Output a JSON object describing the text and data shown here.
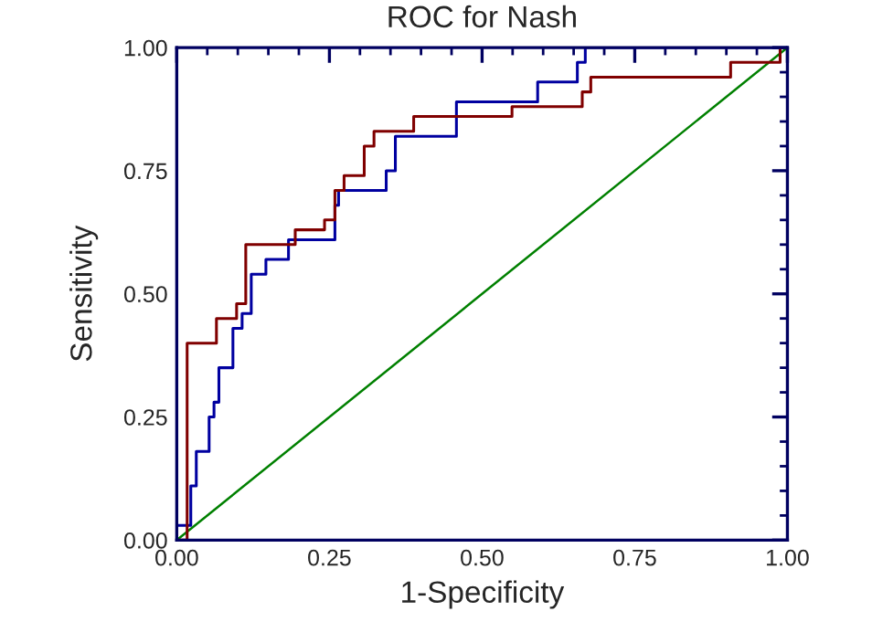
{
  "chart_data": {
    "type": "step",
    "title": "ROC for Nash",
    "xlabel": "1-Specificity",
    "ylabel": "Sensitivity",
    "xlim": [
      0,
      1
    ],
    "ylim": [
      0,
      1
    ],
    "xticks": [
      {
        "value": 0,
        "label": "0.00"
      },
      {
        "value": 0.25,
        "label": "0.25"
      },
      {
        "value": 0.5,
        "label": "0.50"
      },
      {
        "value": 0.75,
        "label": "0.75"
      },
      {
        "value": 1,
        "label": "1.00"
      }
    ],
    "yticks": [
      {
        "value": 0,
        "label": "0.00"
      },
      {
        "value": 0.25,
        "label": "0.25"
      },
      {
        "value": 0.5,
        "label": "0.50"
      },
      {
        "value": 0.75,
        "label": "0.75"
      },
      {
        "value": 1,
        "label": "1.00"
      }
    ],
    "grid": false,
    "legend": false,
    "series": [
      {
        "type": "line",
        "color": "#008000",
        "x": [
          0,
          1
        ],
        "values": [
          0,
          1
        ]
      },
      {
        "color": "#0000a0",
        "x": [
          0,
          0.023,
          0.032,
          0.053,
          0.061,
          0.069,
          0.092,
          0.107,
          0.122,
          0.146,
          0.183,
          0.259,
          0.265,
          0.343,
          0.358,
          0.458,
          0.591,
          0.656,
          0.669,
          1.0
        ],
        "values": [
          0.03,
          0.11,
          0.18,
          0.25,
          0.28,
          0.35,
          0.43,
          0.46,
          0.54,
          0.57,
          0.61,
          0.68,
          0.71,
          0.75,
          0.82,
          0.89,
          0.93,
          0.97,
          1.0,
          1.0
        ]
      },
      {
        "color": "#800000",
        "x": [
          0,
          0.017,
          0.065,
          0.098,
          0.113,
          0.194,
          0.242,
          0.259,
          0.274,
          0.307,
          0.323,
          0.388,
          0.549,
          0.664,
          0.678,
          0.907,
          0.988,
          1.0
        ],
        "values": [
          0,
          0.4,
          0.45,
          0.48,
          0.6,
          0.63,
          0.65,
          0.71,
          0.74,
          0.8,
          0.83,
          0.86,
          0.88,
          0.91,
          0.94,
          0.97,
          1.0,
          1.0
        ]
      }
    ]
  }
}
